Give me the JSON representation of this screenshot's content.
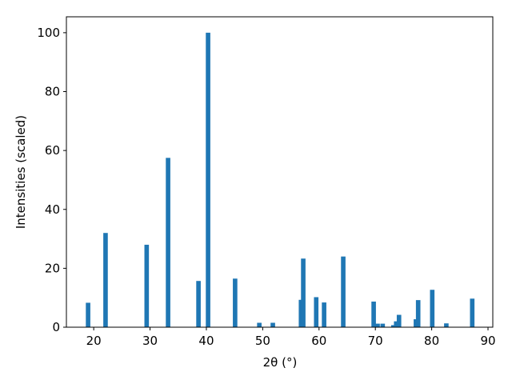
{
  "chart_data": {
    "type": "bar",
    "xlabel": "2θ (°)",
    "ylabel": "Intensities (scaled)",
    "x": [
      19.0,
      22.1,
      29.4,
      33.2,
      38.6,
      40.3,
      45.1,
      49.4,
      51.8,
      56.8,
      57.2,
      59.5,
      60.9,
      64.3,
      69.7,
      70.4,
      71.3,
      73.2,
      73.7,
      74.2,
      77.2,
      77.6,
      80.1,
      82.6,
      87.2
    ],
    "values": [
      8.3,
      32,
      28,
      57.5,
      15.7,
      100,
      16.5,
      1.5,
      1.5,
      9.3,
      23.3,
      10.2,
      8.4,
      24,
      8.7,
      1.2,
      1.2,
      0.7,
      2,
      4.2,
      2.7,
      9.2,
      12.7,
      1.3,
      9.7
    ],
    "color": "#1f77b4",
    "xlim": [
      15.15,
      90.85
    ],
    "xticks": [
      20,
      30,
      40,
      50,
      60,
      70,
      80,
      90
    ],
    "ylim": [
      0,
      105.4
    ],
    "yticks": [
      0,
      20,
      40,
      60,
      80,
      100
    ],
    "grid": false
  }
}
